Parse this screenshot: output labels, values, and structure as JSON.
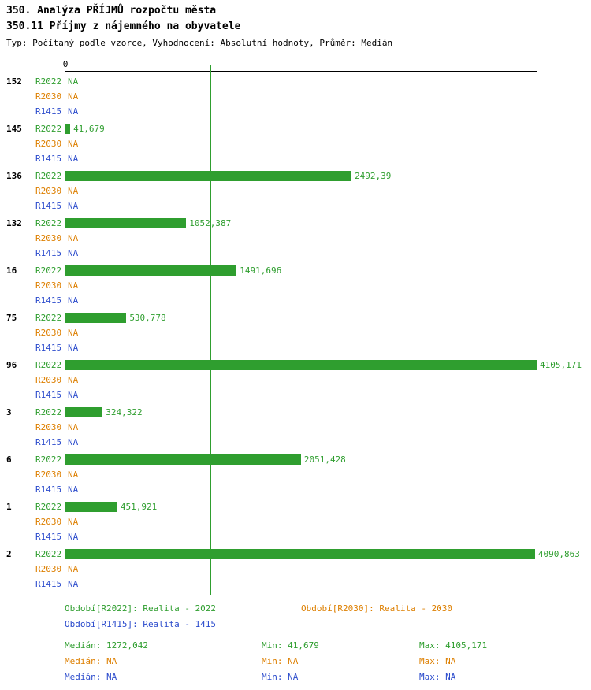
{
  "header": {
    "title": "350. Analýza PŘÍJMŮ rozpočtu města",
    "subtitle": "350.11 Příjmy z nájemného na obyvatele",
    "meta": "Typ: Počítaný podle vzorce, Vyhodnocení: Absolutní hodnoty, Průměr: Medián"
  },
  "colors": {
    "axis": "#000000",
    "green": "#2f9e2f",
    "orange": "#dd7f00",
    "blue": "#2b4bcc"
  },
  "chart_data": {
    "type": "bar",
    "orientation": "horizontal",
    "title": "350.11 Příjmy z nájemného na obyvatele",
    "xlim": [
      0,
      4105.171
    ],
    "axis_zero_label": "0",
    "median_value": 1272.042,
    "median_line_color": "#2f9e2f",
    "grid": false,
    "legend_position": "bottom",
    "series": [
      {
        "name": "R2022",
        "color": "#2f9e2f"
      },
      {
        "name": "R2030",
        "color": "#dd7f00"
      },
      {
        "name": "R1415",
        "color": "#2b4bcc"
      }
    ],
    "categories": [
      "152",
      "145",
      "136",
      "132",
      "16",
      "75",
      "96",
      "3",
      "6",
      "1",
      "2"
    ],
    "rows": [
      {
        "category": "152",
        "values": [
          null,
          null,
          null
        ],
        "labels": [
          "NA",
          "NA",
          "NA"
        ]
      },
      {
        "category": "145",
        "values": [
          41.679,
          null,
          null
        ],
        "labels": [
          "41,679",
          "NA",
          "NA"
        ]
      },
      {
        "category": "136",
        "values": [
          2492.39,
          null,
          null
        ],
        "labels": [
          "2492,39",
          "NA",
          "NA"
        ]
      },
      {
        "category": "132",
        "values": [
          1052.387,
          null,
          null
        ],
        "labels": [
          "1052,387",
          "NA",
          "NA"
        ]
      },
      {
        "category": "16",
        "values": [
          1491.696,
          null,
          null
        ],
        "labels": [
          "1491,696",
          "NA",
          "NA"
        ]
      },
      {
        "category": "75",
        "values": [
          530.778,
          null,
          null
        ],
        "labels": [
          "530,778",
          "NA",
          "NA"
        ]
      },
      {
        "category": "96",
        "values": [
          4105.171,
          null,
          null
        ],
        "labels": [
          "4105,171",
          "NA",
          "NA"
        ]
      },
      {
        "category": "3",
        "values": [
          324.322,
          null,
          null
        ],
        "labels": [
          "324,322",
          "NA",
          "NA"
        ]
      },
      {
        "category": "6",
        "values": [
          2051.428,
          null,
          null
        ],
        "labels": [
          "2051,428",
          "NA",
          "NA"
        ]
      },
      {
        "category": "1",
        "values": [
          451.921,
          null,
          null
        ],
        "labels": [
          "451,921",
          "NA",
          "NA"
        ]
      },
      {
        "category": "2",
        "values": [
          4090.863,
          null,
          null
        ],
        "labels": [
          "4090,863",
          "NA",
          "NA"
        ]
      }
    ]
  },
  "legend": [
    {
      "series": "R2022",
      "label": "Období[R2022]: Realita - 2022"
    },
    {
      "series": "R2030",
      "label": "Období[R2030]: Realita - 2030"
    },
    {
      "series": "R1415",
      "label": "Období[R1415]: Realita - 1415"
    }
  ],
  "stats": [
    {
      "series": "R2022",
      "median": "Medián: 1272,042",
      "min": "Min: 41,679",
      "max": "Max: 4105,171"
    },
    {
      "series": "R2030",
      "median": "Medián: NA",
      "min": "Min: NA",
      "max": "Max: NA"
    },
    {
      "series": "R1415",
      "median": "Medián: NA",
      "min": "Min: NA",
      "max": "Max: NA"
    }
  ]
}
